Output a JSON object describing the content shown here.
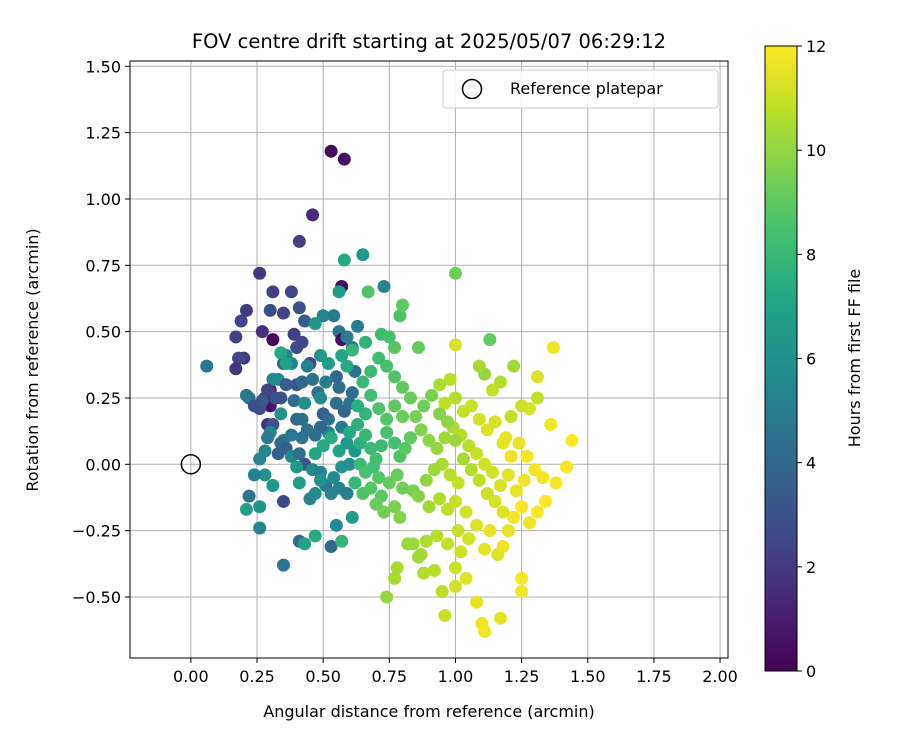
{
  "chart_data": {
    "type": "scatter",
    "title": "FOV centre drift starting at 2025/05/07 06:29:12",
    "xlabel": "Angular distance from reference (arcmin)",
    "ylabel": "Rotation from reference (arcmin)",
    "xlim": [
      -0.23,
      2.03
    ],
    "ylim": [
      -0.73,
      1.52
    ],
    "xticks": [
      "0.00",
      "0.25",
      "0.50",
      "0.75",
      "1.00",
      "1.25",
      "1.50",
      "1.75",
      "2.00"
    ],
    "yticks": [
      "−0.50",
      "−0.25",
      "0.00",
      "0.25",
      "0.50",
      "0.75",
      "1.00",
      "1.25",
      "1.50"
    ],
    "grid": true,
    "legend": {
      "position": "top-right",
      "entries": [
        "Reference platepar"
      ]
    },
    "colorbar": {
      "label": "Hours from first FF file",
      "min": 0,
      "max": 12,
      "ticks": [
        "0",
        "2",
        "4",
        "6",
        "8",
        "10",
        "12"
      ],
      "colormap": "viridis"
    },
    "reference": {
      "x": 0.0,
      "y": 0.0
    },
    "points": [
      [
        0.53,
        1.18,
        0.3
      ],
      [
        0.58,
        1.15,
        0.6
      ],
      [
        0.46,
        0.94,
        1.5
      ],
      [
        0.41,
        0.84,
        2.2
      ],
      [
        0.26,
        0.72,
        2.0
      ],
      [
        0.57,
        0.67,
        0.4
      ],
      [
        0.31,
        0.65,
        2.3
      ],
      [
        0.38,
        0.65,
        2.5
      ],
      [
        0.21,
        0.58,
        2.1
      ],
      [
        0.3,
        0.58,
        2.8
      ],
      [
        0.35,
        0.57,
        2.4
      ],
      [
        0.41,
        0.59,
        3.1
      ],
      [
        0.19,
        0.54,
        2.4
      ],
      [
        0.27,
        0.5,
        1.6
      ],
      [
        0.31,
        0.47,
        0.2
      ],
      [
        0.39,
        0.49,
        2.2
      ],
      [
        0.17,
        0.48,
        2.3
      ],
      [
        0.43,
        0.54,
        3.4
      ],
      [
        0.2,
        0.4,
        2.0
      ],
      [
        0.18,
        0.4,
        2.5
      ],
      [
        0.17,
        0.36,
        1.8
      ],
      [
        0.35,
        0.38,
        3.5
      ],
      [
        0.06,
        0.37,
        4.8
      ],
      [
        0.4,
        0.44,
        2.7
      ],
      [
        0.42,
        0.46,
        2.5
      ],
      [
        0.45,
        0.38,
        2.4
      ],
      [
        0.5,
        0.56,
        5.3
      ],
      [
        0.54,
        0.56,
        4.9
      ],
      [
        0.56,
        0.5,
        4.5
      ],
      [
        0.57,
        0.47,
        0.5
      ],
      [
        0.61,
        0.44,
        4.7
      ],
      [
        0.59,
        0.48,
        5.0
      ],
      [
        0.63,
        0.52,
        5.1
      ],
      [
        0.56,
        0.29,
        4.3
      ],
      [
        0.55,
        0.33,
        4.1
      ],
      [
        0.62,
        0.35,
        4.5
      ],
      [
        0.36,
        0.41,
        5.3
      ],
      [
        0.38,
        0.38,
        5.5
      ],
      [
        0.44,
        0.37,
        5.2
      ],
      [
        0.4,
        0.3,
        3.2
      ],
      [
        0.42,
        0.31,
        4.0
      ],
      [
        0.46,
        0.32,
        4.6
      ],
      [
        0.48,
        0.27,
        4.4
      ],
      [
        0.51,
        0.31,
        5.0
      ],
      [
        0.3,
        0.28,
        1.4
      ],
      [
        0.28,
        0.25,
        0.9
      ],
      [
        0.3,
        0.22,
        0.6
      ],
      [
        0.31,
        0.32,
        5.4
      ],
      [
        0.33,
        0.32,
        5.7
      ],
      [
        0.29,
        0.28,
        2.4
      ],
      [
        0.32,
        0.25,
        3.1
      ],
      [
        0.34,
        0.25,
        3.0
      ],
      [
        0.21,
        0.26,
        4.8
      ],
      [
        0.22,
        0.25,
        4.6
      ],
      [
        0.24,
        0.22,
        3.0
      ],
      [
        0.26,
        0.21,
        2.8
      ],
      [
        0.27,
        0.24,
        3.3
      ],
      [
        0.29,
        0.15,
        1.7
      ],
      [
        0.31,
        0.15,
        3.1
      ],
      [
        0.34,
        0.19,
        6.1
      ],
      [
        0.36,
        0.3,
        3.5
      ],
      [
        0.39,
        0.24,
        4.2
      ],
      [
        0.4,
        0.17,
        4.0
      ],
      [
        0.42,
        0.17,
        4.3
      ],
      [
        0.43,
        0.23,
        5.9
      ],
      [
        0.49,
        0.25,
        5.8
      ],
      [
        0.5,
        0.19,
        3.7
      ],
      [
        0.52,
        0.17,
        4.3
      ],
      [
        0.55,
        0.23,
        4.4
      ],
      [
        0.58,
        0.2,
        3.8
      ],
      [
        0.57,
        0.14,
        4.9
      ],
      [
        0.6,
        0.23,
        4.4
      ],
      [
        0.61,
        0.27,
        4.3
      ],
      [
        0.52,
        0.12,
        5.2
      ],
      [
        0.49,
        0.14,
        4.1
      ],
      [
        0.47,
        0.11,
        4.2
      ],
      [
        0.44,
        0.13,
        4.4
      ],
      [
        0.42,
        0.1,
        4.5
      ],
      [
        0.38,
        0.11,
        4.8
      ],
      [
        0.35,
        0.09,
        4.9
      ],
      [
        0.34,
        0.08,
        4.2
      ],
      [
        0.3,
        0.12,
        5.5
      ],
      [
        0.29,
        0.1,
        5.0
      ],
      [
        0.28,
        0.05,
        5.5
      ],
      [
        0.26,
        0.02,
        5.4
      ],
      [
        0.33,
        0.04,
        3.5
      ],
      [
        0.36,
        0.06,
        3.6
      ],
      [
        0.38,
        0.03,
        5.7
      ],
      [
        0.41,
        0.04,
        4.4
      ],
      [
        0.43,
        0.0,
        3.2
      ],
      [
        0.46,
        -0.02,
        5.6
      ],
      [
        0.49,
        -0.03,
        5.3
      ],
      [
        0.51,
        -0.08,
        4.8
      ],
      [
        0.53,
        -0.11,
        5.3
      ],
      [
        0.56,
        -0.09,
        5.3
      ],
      [
        0.59,
        -0.11,
        5.1
      ],
      [
        0.47,
        -0.11,
        5.9
      ],
      [
        0.45,
        -0.13,
        5.4
      ],
      [
        0.41,
        -0.07,
        6.8
      ],
      [
        0.4,
        -0.01,
        6.4
      ],
      [
        0.35,
        -0.14,
        2.7
      ],
      [
        0.31,
        -0.08,
        6.3
      ],
      [
        0.28,
        -0.04,
        6.2
      ],
      [
        0.24,
        -0.04,
        5.2
      ],
      [
        0.22,
        -0.12,
        4.6
      ],
      [
        0.21,
        -0.17,
        6.8
      ],
      [
        0.26,
        -0.16,
        6.1
      ],
      [
        0.26,
        -0.24,
        5.5
      ],
      [
        0.35,
        -0.38,
        4.5
      ],
      [
        0.41,
        -0.29,
        4.3
      ],
      [
        0.43,
        -0.3,
        6.9
      ],
      [
        0.47,
        -0.27,
        7.3
      ],
      [
        0.53,
        -0.31,
        4.1
      ],
      [
        0.55,
        -0.23,
        5.7
      ],
      [
        0.57,
        -0.29,
        7.8
      ],
      [
        0.61,
        -0.2,
        6.6
      ],
      [
        0.49,
        -0.06,
        6.1
      ],
      [
        0.54,
        -0.05,
        5.8
      ],
      [
        0.57,
        -0.01,
        6.2
      ],
      [
        0.6,
        0.0,
        5.9
      ],
      [
        0.62,
        0.05,
        6.3
      ],
      [
        0.59,
        0.08,
        6.5
      ],
      [
        0.56,
        0.05,
        7.0
      ],
      [
        0.53,
        0.1,
        7.4
      ],
      [
        0.5,
        0.07,
        7.3
      ],
      [
        0.47,
        0.04,
        7.0
      ],
      [
        0.64,
        0.08,
        7.6
      ],
      [
        0.66,
        0.11,
        7.9
      ],
      [
        0.68,
        0.06,
        8.1
      ],
      [
        0.7,
        0.02,
        8.3
      ],
      [
        0.72,
        0.07,
        8.2
      ],
      [
        0.74,
        0.12,
        8.5
      ],
      [
        0.77,
        0.08,
        8.4
      ],
      [
        0.79,
        0.03,
        8.6
      ],
      [
        0.81,
        0.06,
        8.9
      ],
      [
        0.83,
        0.1,
        9.0
      ],
      [
        0.64,
        0.0,
        8.1
      ],
      [
        0.66,
        -0.03,
        8.5
      ],
      [
        0.69,
        -0.01,
        8.3
      ],
      [
        0.71,
        -0.05,
        8.8
      ],
      [
        0.62,
        -0.07,
        7.9
      ],
      [
        0.65,
        -0.11,
        8.6
      ],
      [
        0.68,
        -0.09,
        8.8
      ],
      [
        0.72,
        -0.12,
        8.9
      ],
      [
        0.75,
        -0.07,
        9.1
      ],
      [
        0.78,
        -0.04,
        9.2
      ],
      [
        0.8,
        -0.09,
        9.3
      ],
      [
        0.84,
        -0.1,
        9.5
      ],
      [
        0.7,
        -0.15,
        9.2
      ],
      [
        0.73,
        -0.18,
        9.4
      ],
      [
        0.77,
        -0.16,
        9.6
      ],
      [
        0.79,
        -0.2,
        9.8
      ],
      [
        0.82,
        -0.3,
        10.1
      ],
      [
        0.84,
        -0.3,
        10.2
      ],
      [
        0.87,
        -0.34,
        10.4
      ],
      [
        0.88,
        -0.41,
        10.6
      ],
      [
        0.92,
        -0.4,
        10.7
      ],
      [
        0.78,
        -0.39,
        10.5
      ],
      [
        0.77,
        -0.43,
        10.4
      ],
      [
        0.74,
        -0.5,
        10.1
      ],
      [
        0.96,
        -0.57,
        11.0
      ],
      [
        1.0,
        -0.46,
        11.2
      ],
      [
        1.04,
        -0.43,
        11.4
      ],
      [
        1.08,
        -0.52,
        11.5
      ],
      [
        1.1,
        -0.6,
        11.7
      ],
      [
        1.11,
        -0.63,
        11.8
      ],
      [
        1.17,
        -0.58,
        11.5
      ],
      [
        1.25,
        -0.48,
        11.8
      ],
      [
        1.25,
        -0.43,
        11.9
      ],
      [
        0.95,
        -0.48,
        10.8
      ],
      [
        1.0,
        -0.39,
        11.0
      ],
      [
        1.02,
        -0.33,
        11.1
      ],
      [
        0.86,
        -0.35,
        10.3
      ],
      [
        0.89,
        -0.29,
        10.5
      ],
      [
        0.93,
        -0.27,
        10.7
      ],
      [
        0.97,
        -0.3,
        10.9
      ],
      [
        1.01,
        -0.25,
        11.0
      ],
      [
        1.05,
        -0.28,
        11.2
      ],
      [
        1.08,
        -0.23,
        11.3
      ],
      [
        1.11,
        -0.32,
        11.5
      ],
      [
        1.13,
        -0.25,
        11.6
      ],
      [
        1.16,
        -0.34,
        11.3
      ],
      [
        1.18,
        -0.31,
        11.7
      ],
      [
        1.2,
        -0.25,
        11.6
      ],
      [
        1.22,
        -0.2,
        11.8
      ],
      [
        1.25,
        -0.16,
        11.9
      ],
      [
        1.28,
        -0.22,
        11.7
      ],
      [
        1.31,
        -0.18,
        11.9
      ],
      [
        1.34,
        -0.14,
        12.0
      ],
      [
        1.38,
        -0.07,
        11.8
      ],
      [
        1.42,
        -0.01,
        11.9
      ],
      [
        1.44,
        0.09,
        12.0
      ],
      [
        1.36,
        0.15,
        11.8
      ],
      [
        1.31,
        0.33,
        11.4
      ],
      [
        1.28,
        0.21,
        11.3
      ],
      [
        1.31,
        0.25,
        10.9
      ],
      [
        1.25,
        0.22,
        11.1
      ],
      [
        1.21,
        0.18,
        10.9
      ],
      [
        1.19,
        0.1,
        11.6
      ],
      [
        1.22,
        0.37,
        10.3
      ],
      [
        1.17,
        0.31,
        10.6
      ],
      [
        1.14,
        0.28,
        10.9
      ],
      [
        1.11,
        0.34,
        10.1
      ],
      [
        1.09,
        0.37,
        10.4
      ],
      [
        1.37,
        0.44,
        11.7
      ],
      [
        1.0,
        0.45,
        11.3
      ],
      [
        1.13,
        0.47,
        9.1
      ],
      [
        1.0,
        0.72,
        9.3
      ],
      [
        0.98,
        0.32,
        10.7
      ],
      [
        0.94,
        0.3,
        10.5
      ],
      [
        0.96,
        0.23,
        10.8
      ],
      [
        1.0,
        0.25,
        10.6
      ],
      [
        1.03,
        0.2,
        10.9
      ],
      [
        1.06,
        0.22,
        11.0
      ],
      [
        1.09,
        0.17,
        11.2
      ],
      [
        1.12,
        0.13,
        11.4
      ],
      [
        1.15,
        0.16,
        11.3
      ],
      [
        1.18,
        0.08,
        11.5
      ],
      [
        1.21,
        0.03,
        11.7
      ],
      [
        1.24,
        0.08,
        11.6
      ],
      [
        1.27,
        0.03,
        11.8
      ],
      [
        1.3,
        -0.02,
        11.9
      ],
      [
        1.33,
        -0.05,
        11.8
      ],
      [
        1.26,
        -0.06,
        11.7
      ],
      [
        1.23,
        -0.1,
        11.6
      ],
      [
        1.2,
        -0.04,
        11.4
      ],
      [
        1.17,
        -0.08,
        11.3
      ],
      [
        1.14,
        -0.03,
        11.2
      ],
      [
        1.11,
        0.0,
        11.1
      ],
      [
        1.08,
        0.04,
        11.0
      ],
      [
        1.05,
        0.07,
        10.8
      ],
      [
        1.02,
        0.11,
        10.6
      ],
      [
        0.99,
        0.14,
        10.5
      ],
      [
        0.96,
        0.1,
        10.3
      ],
      [
        0.93,
        0.06,
        10.1
      ],
      [
        0.9,
        0.09,
        9.9
      ],
      [
        0.87,
        0.13,
        9.7
      ],
      [
        0.85,
        0.18,
        9.5
      ],
      [
        0.88,
        0.22,
        9.3
      ],
      [
        0.91,
        0.26,
        9.6
      ],
      [
        0.94,
        0.19,
        9.8
      ],
      [
        0.97,
        0.16,
        10.0
      ],
      [
        1.0,
        0.09,
        10.2
      ],
      [
        1.03,
        0.02,
        10.4
      ],
      [
        1.06,
        -0.02,
        10.6
      ],
      [
        1.09,
        -0.06,
        10.8
      ],
      [
        1.12,
        -0.11,
        11.0
      ],
      [
        1.15,
        -0.14,
        11.2
      ],
      [
        1.18,
        -0.18,
        11.4
      ],
      [
        1.01,
        -0.07,
        10.9
      ],
      [
        0.98,
        -0.04,
        10.7
      ],
      [
        0.95,
        0.0,
        10.5
      ],
      [
        0.92,
        -0.02,
        10.2
      ],
      [
        0.89,
        -0.06,
        10.0
      ],
      [
        0.86,
        -0.12,
        9.8
      ],
      [
        0.9,
        -0.16,
        10.3
      ],
      [
        0.94,
        -0.13,
        10.6
      ],
      [
        0.97,
        -0.17,
        10.8
      ],
      [
        1.0,
        -0.14,
        11.0
      ],
      [
        1.04,
        -0.18,
        11.2
      ],
      [
        0.83,
        0.25,
        9.2
      ],
      [
        0.8,
        0.29,
        9.0
      ],
      [
        0.77,
        0.33,
        8.7
      ],
      [
        0.74,
        0.37,
        8.5
      ],
      [
        0.71,
        0.4,
        8.3
      ],
      [
        0.68,
        0.35,
        8.1
      ],
      [
        0.65,
        0.31,
        8.0
      ],
      [
        0.68,
        0.26,
        8.3
      ],
      [
        0.71,
        0.21,
        8.6
      ],
      [
        0.74,
        0.17,
        8.8
      ],
      [
        0.77,
        0.22,
        9.0
      ],
      [
        0.8,
        0.18,
        9.3
      ],
      [
        0.66,
        0.19,
        7.8
      ],
      [
        0.63,
        0.15,
        7.6
      ],
      [
        0.6,
        0.12,
        7.4
      ],
      [
        0.63,
        0.22,
        7.5
      ],
      [
        0.77,
        0.44,
        8.9
      ],
      [
        0.79,
        0.56,
        8.6
      ],
      [
        0.8,
        0.6,
        8.9
      ],
      [
        0.67,
        0.65,
        8.7
      ],
      [
        0.61,
        0.43,
        7.9
      ],
      [
        0.66,
        0.46,
        7.7
      ],
      [
        0.72,
        0.49,
        8.2
      ],
      [
        0.75,
        0.48,
        8.4
      ],
      [
        0.86,
        0.44,
        9.1
      ],
      [
        0.58,
        0.77,
        7.2
      ],
      [
        0.65,
        0.79,
        6.4
      ],
      [
        0.73,
        0.67,
        5.3
      ],
      [
        0.56,
        0.65,
        6.8
      ],
      [
        0.47,
        0.53,
        6.4
      ],
      [
        0.49,
        0.41,
        6.3
      ],
      [
        0.52,
        0.38,
        6.6
      ],
      [
        0.36,
        0.38,
        6.9
      ],
      [
        0.34,
        0.42,
        7.2
      ],
      [
        0.57,
        0.41,
        7.0
      ],
      [
        0.59,
        0.37,
        7.3
      ]
    ]
  }
}
